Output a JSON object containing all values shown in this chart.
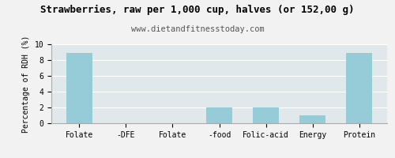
{
  "title": "Strawberries, raw per 1,000 cup, halves (or 152,00 g)",
  "subtitle": "www.dietandfitnesstoday.com",
  "categories": [
    "Folate",
    "-DFE",
    "Folate",
    "-food",
    "Folic-acid",
    "Energy",
    "Protein"
  ],
  "values": [
    8.9,
    0,
    0,
    2.0,
    2.0,
    1.0,
    8.9
  ],
  "bar_color": "#96CCD8",
  "ylabel": "Percentage of RDH (%)",
  "ylim": [
    0,
    10
  ],
  "yticks": [
    0,
    2,
    4,
    6,
    8,
    10
  ],
  "background_color": "#f2f2f2",
  "plot_bg_color": "#e0e8ec",
  "title_fontsize": 9,
  "subtitle_fontsize": 7.5,
  "ylabel_fontsize": 7,
  "tick_fontsize": 7,
  "grid_color": "#ffffff",
  "border_color": "#aaaaaa"
}
